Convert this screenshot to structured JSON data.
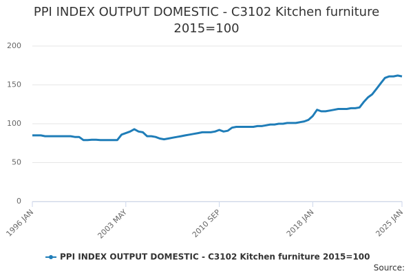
{
  "chart_data": {
    "type": "line",
    "title": "PPI INDEX OUTPUT DOMESTIC - C3102 Kitchen furniture 2015=100",
    "source": "Source:",
    "categories": [
      "1996 JAN",
      null,
      null,
      null,
      null,
      null,
      null,
      null,
      null,
      null,
      null,
      null,
      null,
      null,
      null,
      null,
      null,
      null,
      null,
      null,
      null,
      null,
      "2003 MAY",
      null,
      null,
      null,
      null,
      null,
      null,
      null,
      null,
      null,
      null,
      null,
      null,
      null,
      null,
      null,
      null,
      null,
      null,
      null,
      null,
      null,
      "2010 SEP",
      null,
      null,
      null,
      null,
      null,
      null,
      null,
      null,
      null,
      null,
      null,
      null,
      null,
      null,
      null,
      null,
      null,
      null,
      null,
      null,
      null,
      "2018 JAN",
      null,
      null,
      null,
      null,
      null,
      null,
      null,
      null,
      null,
      null,
      null,
      null,
      null,
      null,
      null,
      null,
      null,
      null,
      null,
      null,
      "2025 JAN"
    ],
    "series": [
      {
        "name": "PPI INDEX OUTPUT DOMESTIC - C3102 Kitchen furniture 2015=100",
        "color": "#1f7db8",
        "values": [
          85,
          85,
          85,
          84,
          84,
          84,
          84,
          84,
          84,
          84,
          83,
          83,
          79,
          79,
          79.5,
          79.5,
          79,
          79,
          79,
          79,
          79,
          86,
          88,
          90,
          93,
          90,
          89,
          84,
          84,
          83,
          81,
          80,
          81,
          82,
          83,
          84,
          85,
          86,
          87,
          88,
          89,
          89,
          89,
          90,
          92,
          90,
          91,
          95,
          96,
          96,
          96,
          96,
          96,
          97,
          97,
          98,
          99,
          99,
          100,
          100,
          101,
          101,
          101,
          102,
          103,
          105,
          110,
          118,
          116,
          116,
          117,
          118,
          119,
          119,
          119,
          120,
          120,
          121,
          128,
          134,
          138,
          145,
          152,
          159,
          161,
          161,
          162,
          161
        ]
      }
    ],
    "ylim": [
      0,
      200
    ],
    "yticks": [
      0,
      50,
      100,
      150,
      200
    ],
    "grid": true,
    "legend": "bottom"
  }
}
